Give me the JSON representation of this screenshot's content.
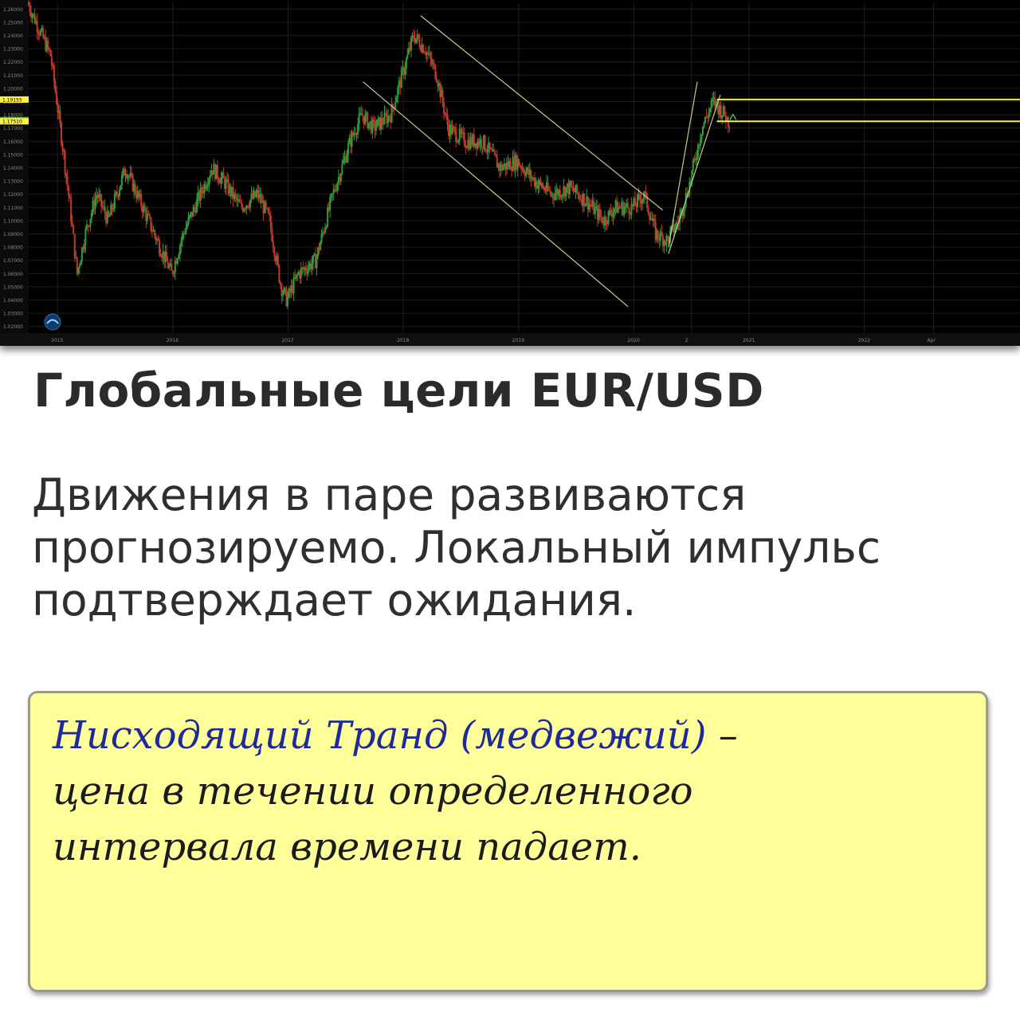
{
  "chart_data": {
    "type": "candlestick",
    "instrument": "EUR/USD",
    "y_ticks": [
      "1.26000",
      "1.25000",
      "1.24000",
      "1.23000",
      "1.22000",
      "1.21000",
      "1.20000",
      "1.19000",
      "1.18000",
      "1.17000",
      "1.16000",
      "1.15000",
      "1.14000",
      "1.13000",
      "1.12000",
      "1.11000",
      "1.10000",
      "1.09000",
      "1.08000",
      "1.07000",
      "1.06000",
      "1.05000",
      "1.04000",
      "1.03000",
      "1.02000"
    ],
    "ylim": [
      1.015,
      1.265
    ],
    "x_ticks": [
      "2015",
      "2016",
      "2017",
      "2018",
      "2019",
      "2020",
      "2",
      "2021",
      "2022",
      "Apr"
    ],
    "x_tick_times": [
      2015.0,
      2016.0,
      2017.0,
      2018.0,
      2019.0,
      2020.0,
      2020.5,
      2021.0,
      2022.0,
      2022.6
    ],
    "xlim": [
      2014.75,
      2023.35
    ],
    "price_labels": [
      {
        "text": "1.19155",
        "value": 1.19155,
        "color": "#ffee44"
      },
      {
        "text": "1.17596",
        "value": 1.17596,
        "color": "#33cc33"
      },
      {
        "text": "1.17510",
        "value": 1.1751,
        "color": "#ffee44"
      }
    ],
    "price_path": [
      [
        2014.75,
        1.265
      ],
      [
        2014.85,
        1.245
      ],
      [
        2014.95,
        1.225
      ],
      [
        2015.05,
        1.16
      ],
      [
        2015.12,
        1.11
      ],
      [
        2015.18,
        1.06
      ],
      [
        2015.25,
        1.09
      ],
      [
        2015.35,
        1.12
      ],
      [
        2015.45,
        1.1
      ],
      [
        2015.6,
        1.14
      ],
      [
        2015.75,
        1.11
      ],
      [
        2015.9,
        1.08
      ],
      [
        2016.0,
        1.06
      ],
      [
        2016.1,
        1.09
      ],
      [
        2016.25,
        1.12
      ],
      [
        2016.35,
        1.14
      ],
      [
        2016.45,
        1.13
      ],
      [
        2016.6,
        1.11
      ],
      [
        2016.75,
        1.12
      ],
      [
        2016.85,
        1.1
      ],
      [
        2016.95,
        1.05
      ],
      [
        2017.0,
        1.04
      ],
      [
        2017.1,
        1.06
      ],
      [
        2017.25,
        1.07
      ],
      [
        2017.4,
        1.12
      ],
      [
        2017.55,
        1.16
      ],
      [
        2017.65,
        1.18
      ],
      [
        2017.75,
        1.17
      ],
      [
        2017.9,
        1.18
      ],
      [
        2018.0,
        1.21
      ],
      [
        2018.1,
        1.24
      ],
      [
        2018.2,
        1.23
      ],
      [
        2018.3,
        1.21
      ],
      [
        2018.4,
        1.17
      ],
      [
        2018.55,
        1.16
      ],
      [
        2018.7,
        1.16
      ],
      [
        2018.85,
        1.14
      ],
      [
        2019.0,
        1.145
      ],
      [
        2019.15,
        1.13
      ],
      [
        2019.3,
        1.12
      ],
      [
        2019.45,
        1.125
      ],
      [
        2019.6,
        1.115
      ],
      [
        2019.75,
        1.1
      ],
      [
        2019.85,
        1.11
      ],
      [
        2020.0,
        1.11
      ],
      [
        2020.1,
        1.12
      ],
      [
        2020.2,
        1.09
      ],
      [
        2020.3,
        1.085
      ],
      [
        2020.4,
        1.1
      ],
      [
        2020.5,
        1.13
      ],
      [
        2020.6,
        1.17
      ],
      [
        2020.7,
        1.19
      ],
      [
        2020.8,
        1.18
      ],
      [
        2020.83,
        1.175
      ]
    ],
    "trend_lines": [
      {
        "from": [
          2017.65,
          1.205
        ],
        "to": [
          2019.95,
          1.035
        ],
        "color": "#c9c98a"
      },
      {
        "from": [
          2018.15,
          1.255
        ],
        "to": [
          2020.25,
          1.108
        ],
        "color": "#c9c98a"
      },
      {
        "from": [
          2020.3,
          1.08
        ],
        "to": [
          2020.55,
          1.205
        ],
        "color": "#c9c98a"
      },
      {
        "from": [
          2020.3,
          1.075
        ],
        "to": [
          2020.75,
          1.195
        ],
        "color": "#c9c98a"
      }
    ],
    "levels": [
      {
        "value": 1.19155,
        "from": 2020.72,
        "color": "#ffee22"
      },
      {
        "value": 1.1751,
        "from": 2020.72,
        "color": "#ffee22"
      }
    ]
  },
  "heading": "Глобальные цели EUR/USD",
  "description": "Движения в паре развиваются прогнозируемо. Локальный импульс подтверждает ожидания.",
  "note": {
    "line1_term": "Нисходящий Транд (медвежий)",
    "line1_rest": " –",
    "line2": "цена в течении определенного",
    "line3": "интервала времени падает."
  },
  "colors": {
    "bullish": "#2e9d3a",
    "bearish": "#c0392b",
    "note_background": "#ffff99",
    "note_term": "#1e2a9a"
  }
}
